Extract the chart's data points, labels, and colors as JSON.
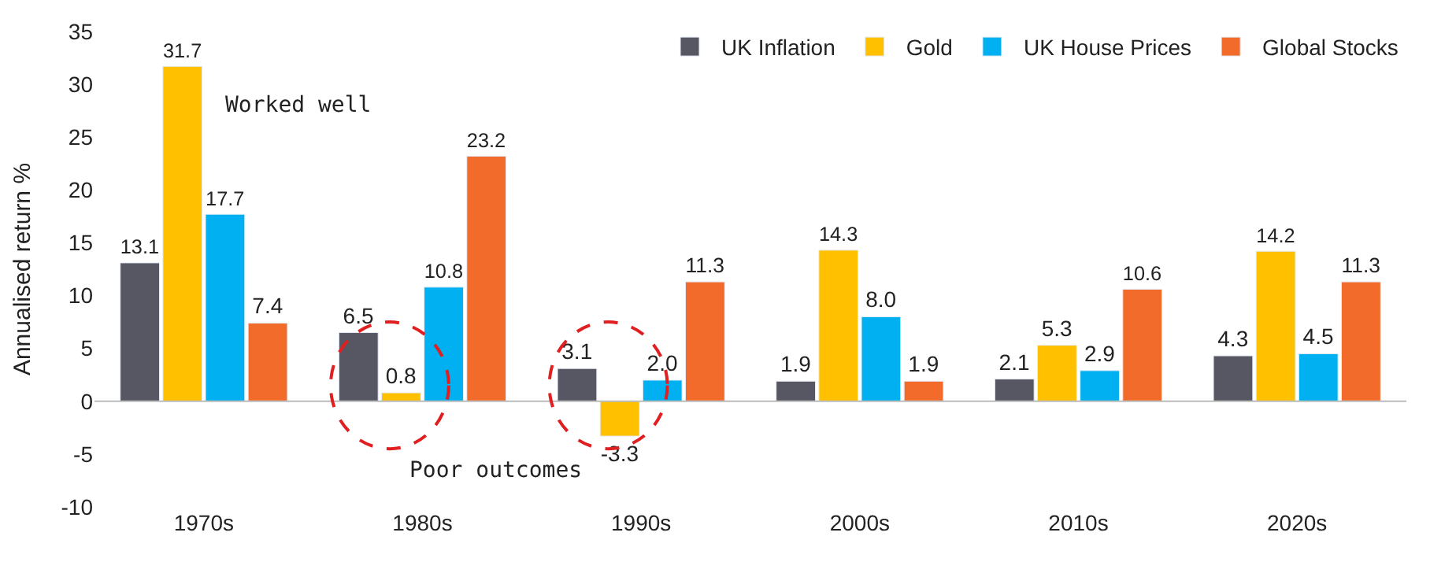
{
  "chart_data": {
    "type": "bar",
    "ylabel": "Annualised return %",
    "categories": [
      "1970s",
      "1980s",
      "1990s",
      "2000s",
      "2010s",
      "2020s"
    ],
    "series": [
      {
        "name": "UK Inflation",
        "color": "#575763",
        "values": [
          13.1,
          6.5,
          3.1,
          1.9,
          2.1,
          4.3
        ]
      },
      {
        "name": "Gold",
        "color": "#ffc000",
        "values": [
          31.7,
          0.8,
          -3.3,
          14.3,
          5.3,
          14.2
        ]
      },
      {
        "name": "UK House Prices",
        "color": "#00b0f0",
        "values": [
          17.7,
          10.8,
          2.0,
          8.0,
          2.9,
          4.5
        ],
        "value_labels": [
          "17.7",
          "10.8",
          "2.0",
          "8.0",
          "2.9",
          "4.5"
        ]
      },
      {
        "name": "Global Stocks",
        "color": "#f26b2a",
        "values": [
          7.4,
          23.2,
          11.3,
          1.9,
          10.6,
          11.3
        ]
      }
    ],
    "ylim": [
      -10,
      35
    ],
    "yticks": [
      -10,
      -5,
      0,
      5,
      10,
      15,
      20,
      25,
      30,
      35
    ],
    "legend": "top right",
    "data_labels": true,
    "annotations": [
      "Worked well",
      "Poor outcomes"
    ]
  }
}
